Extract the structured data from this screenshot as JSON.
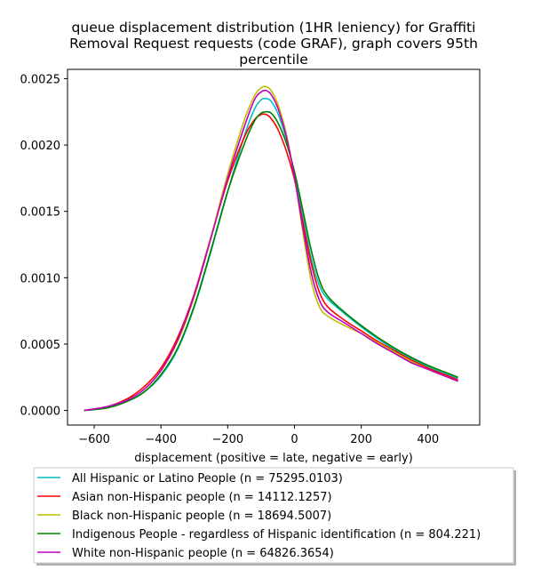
{
  "chart_data": {
    "type": "line",
    "title": [
      "queue displacement distribution (1HR leniency) for Graffiti",
      "Removal Request  requests (code GRAF), graph covers 95th",
      "percentile"
    ],
    "xlabel": "displacement (positive = late, negative = early)",
    "ylabel": "",
    "xlim": [
      -680,
      555
    ],
    "ylim": [
      -0.00011,
      0.00257
    ],
    "xticks": [
      -600,
      -400,
      -200,
      0,
      200,
      400
    ],
    "xtick_labels": [
      "−600",
      "−400",
      "−200",
      "0",
      "200",
      "400"
    ],
    "yticks": [
      0.0,
      0.0005,
      0.001,
      0.0015,
      0.002,
      0.0025
    ],
    "ytick_labels": [
      "0.0000",
      "0.0005",
      "0.0010",
      "0.0015",
      "0.0020",
      "0.0025"
    ],
    "grid": false,
    "legend_position": "below",
    "series": [
      {
        "name": "All Hispanic or Latino People (n = 75295.0103)",
        "color": "#00bfbf",
        "x": [
          -630,
          -560,
          -500,
          -450,
          -400,
          -350,
          -300,
          -250,
          -200,
          -150,
          -120,
          -100,
          -85,
          -70,
          -50,
          -25,
          0,
          25,
          50,
          75,
          100,
          150,
          200,
          250,
          300,
          350,
          400,
          450,
          490
        ],
        "y": [
          0.0,
          2e-05,
          7e-05,
          0.00014,
          0.00026,
          0.00046,
          0.00078,
          0.0012,
          0.00165,
          0.00207,
          0.00227,
          0.00234,
          0.00235,
          0.00233,
          0.00224,
          0.00205,
          0.00178,
          0.00146,
          0.00115,
          0.00094,
          0.00084,
          0.00073,
          0.00063,
          0.00054,
          0.00046,
          0.00039,
          0.00033,
          0.00028,
          0.00024
        ]
      },
      {
        "name": "Asian non-Hispanic people (n = 14112.1257)",
        "color": "#ff0000",
        "x": [
          -630,
          -560,
          -500,
          -450,
          -400,
          -350,
          -300,
          -250,
          -200,
          -150,
          -120,
          -100,
          -85,
          -70,
          -50,
          -25,
          0,
          25,
          50,
          75,
          100,
          150,
          200,
          250,
          300,
          350,
          400,
          450,
          490
        ],
        "y": [
          0.0,
          3e-05,
          9e-05,
          0.00018,
          0.00032,
          0.00055,
          0.00088,
          0.00131,
          0.00173,
          0.00206,
          0.00219,
          0.00223,
          0.00223,
          0.0022,
          0.00212,
          0.00196,
          0.00174,
          0.00142,
          0.00111,
          0.00089,
          0.00078,
          0.00068,
          0.0006,
          0.00052,
          0.00045,
          0.00038,
          0.00032,
          0.00027,
          0.00023
        ]
      },
      {
        "name": "Black non-Hispanic people (n = 18694.5007)",
        "color": "#bfbf00",
        "x": [
          -630,
          -560,
          -500,
          -450,
          -400,
          -350,
          -300,
          -250,
          -200,
          -150,
          -120,
          -100,
          -85,
          -70,
          -50,
          -25,
          0,
          25,
          50,
          75,
          100,
          150,
          200,
          250,
          300,
          350,
          400,
          450,
          490
        ],
        "y": [
          0.0,
          3e-05,
          8e-05,
          0.00016,
          0.0003,
          0.00052,
          0.00086,
          0.00131,
          0.00178,
          0.00219,
          0.00237,
          0.00243,
          0.00244,
          0.00241,
          0.00231,
          0.00209,
          0.00176,
          0.00135,
          0.00098,
          0.00078,
          0.00071,
          0.00064,
          0.00058,
          0.00051,
          0.00044,
          0.00037,
          0.00031,
          0.00026,
          0.00022
        ]
      },
      {
        "name": "Indigenous People - regardless of Hispanic identification (n = 804.221)",
        "color": "#008000",
        "x": [
          -630,
          -560,
          -500,
          -450,
          -400,
          -350,
          -300,
          -250,
          -200,
          -150,
          -120,
          -100,
          -85,
          -70,
          -50,
          -25,
          0,
          25,
          50,
          75,
          100,
          150,
          200,
          250,
          300,
          350,
          400,
          450,
          490
        ],
        "y": [
          0.0,
          2e-05,
          7e-05,
          0.00014,
          0.00027,
          0.00047,
          0.00079,
          0.00121,
          0.00165,
          0.00201,
          0.00218,
          0.00224,
          0.00225,
          0.00224,
          0.00217,
          0.00202,
          0.0018,
          0.00151,
          0.00121,
          0.00098,
          0.00086,
          0.00074,
          0.00064,
          0.00055,
          0.00047,
          0.0004,
          0.00034,
          0.00029,
          0.00025
        ]
      },
      {
        "name": "White non-Hispanic people (n = 64826.3654)",
        "color": "#bf00bf",
        "x": [
          -630,
          -560,
          -500,
          -450,
          -400,
          -350,
          -300,
          -250,
          -200,
          -150,
          -120,
          -100,
          -85,
          -70,
          -50,
          -25,
          0,
          25,
          50,
          75,
          100,
          150,
          200,
          250,
          300,
          350,
          400,
          450,
          490
        ],
        "y": [
          0.0,
          3e-05,
          8e-05,
          0.00016,
          0.0003,
          0.00053,
          0.00087,
          0.0013,
          0.00175,
          0.00214,
          0.00234,
          0.0024,
          0.00241,
          0.00238,
          0.00228,
          0.00207,
          0.00176,
          0.00138,
          0.00104,
          0.00083,
          0.00074,
          0.00066,
          0.00058,
          0.0005,
          0.00043,
          0.00036,
          0.00031,
          0.00026,
          0.00022
        ]
      }
    ]
  }
}
